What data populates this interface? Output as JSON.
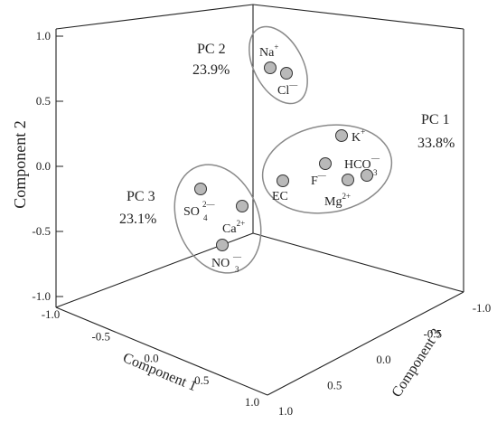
{
  "chart_data": {
    "type": "scatter",
    "projection": "3d",
    "axes": {
      "x": {
        "label": "Component 1",
        "range": [
          -1.0,
          1.0
        ],
        "ticks": [
          "-1.0",
          "-0.5",
          "0.0",
          "0.5",
          "1.0"
        ]
      },
      "y": {
        "label": "Component 2",
        "range": [
          -1.0,
          1.0
        ],
        "ticks": [
          "-1.0",
          "-0.5",
          "0.0",
          "0.5",
          "1.0"
        ]
      },
      "z": {
        "label": "Component 3",
        "range": [
          -1.0,
          1.0
        ],
        "ticks": [
          "-1.0",
          "-0.5",
          "0.0",
          "0.5",
          "1.0"
        ]
      }
    },
    "groups": [
      {
        "name": "PC 1",
        "variance": "33.8%",
        "members": [
          "K",
          "F",
          "HCO",
          "EC",
          "Mg"
        ]
      },
      {
        "name": "PC 2",
        "variance": "23.9%",
        "members": [
          "Na",
          "Cl"
        ]
      },
      {
        "name": "PC 3",
        "variance": "23.1%",
        "members": [
          "SO",
          "Ca",
          "NO"
        ]
      }
    ],
    "points": [
      {
        "base": "Na",
        "sup": "+",
        "sub": "",
        "x": -0.1,
        "y": 0.62,
        "z": -0.75,
        "marker": [
          299,
          75
        ]
      },
      {
        "base": "Cl",
        "sup": "—",
        "sub": "",
        "x": -0.05,
        "y": 0.58,
        "z": -0.72,
        "marker": [
          317,
          81
        ]
      },
      {
        "base": "K",
        "sup": "+",
        "sub": "",
        "x": 0.45,
        "y": 0.25,
        "z": -0.7,
        "marker": [
          378,
          150
        ]
      },
      {
        "base": "F",
        "sup": "—",
        "sub": "",
        "x": 0.4,
        "y": 0.02,
        "z": -0.4,
        "marker": [
          360,
          181
        ]
      },
      {
        "base": "HCO",
        "sup": "—",
        "sub": "3",
        "x": 0.55,
        "y": 0.05,
        "z": -0.65,
        "marker": [
          406,
          194
        ]
      },
      {
        "base": "EC",
        "sup": "",
        "sub": "",
        "x": 0.3,
        "y": -0.02,
        "z": -0.2,
        "marker": [
          313,
          200
        ]
      },
      {
        "base": "Mg",
        "sup": "2+",
        "sub": "",
        "x": 0.5,
        "y": -0.05,
        "z": -0.55,
        "marker": [
          385,
          199
        ]
      },
      {
        "base": "SO",
        "sup": "2—",
        "sub": "4",
        "x": -0.75,
        "y": -0.3,
        "z": 0.3,
        "marker": [
          222,
          209
        ]
      },
      {
        "base": "Ca",
        "sup": "2+",
        "sub": "",
        "x": -0.35,
        "y": -0.4,
        "z": 0.1,
        "marker": [
          268,
          228
        ]
      },
      {
        "base": "NO",
        "sup": "—",
        "sub": "3",
        "x": -0.55,
        "y": -0.55,
        "z": 0.4,
        "marker": [
          246,
          271
        ]
      }
    ],
    "grid": false,
    "legend": "none"
  }
}
